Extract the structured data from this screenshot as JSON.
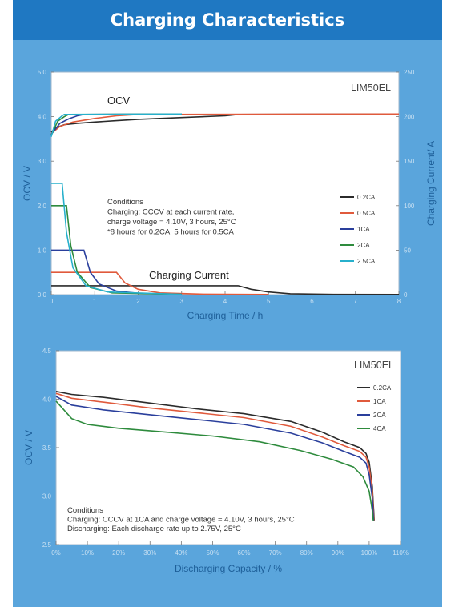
{
  "header": {
    "title": "Charging Characteristics"
  },
  "chart_data": [
    {
      "type": "line",
      "model": "LIM50EL",
      "xlabel": "Charging Time / h",
      "ylabel": "OCV / V",
      "y2label": "Charging Current/ A",
      "xlim": [
        0,
        8
      ],
      "ylim": [
        0.0,
        5.0
      ],
      "y2lim": [
        0,
        250
      ],
      "x_ticks": [
        "0",
        "1",
        "2",
        "3",
        "4",
        "5",
        "6",
        "7",
        "8"
      ],
      "y_ticks": [
        "0.0",
        "1.0",
        "2.0",
        "3.0",
        "4.0",
        "5.0"
      ],
      "y2_ticks": [
        "0",
        "50",
        "100",
        "150",
        "200",
        "250"
      ],
      "annotations": [
        "OCV",
        "Charging Current"
      ],
      "conditions": [
        "Conditions",
        "Charging: CCCV at each current rate,",
        "charge voltage = 4.10V, 3 hours, 25°C",
        "*8 hours for 0.2CA, 5 hours for 0.5CA"
      ],
      "legend_position": "right",
      "series": [
        {
          "name": "0.2CA",
          "color": "#2b2b2b",
          "ocv": [
            [
              0,
              3.65
            ],
            [
              0.1,
              3.75
            ],
            [
              0.3,
              3.82
            ],
            [
              0.6,
              3.85
            ],
            [
              1,
              3.88
            ],
            [
              1.5,
              3.91
            ],
            [
              2,
              3.94
            ],
            [
              3,
              3.98
            ],
            [
              4,
              4.02
            ],
            [
              4.3,
              4.05
            ],
            [
              8,
              4.06
            ]
          ],
          "current": [
            [
              0,
              10
            ],
            [
              4.3,
              10
            ],
            [
              4.6,
              6
            ],
            [
              5,
              3
            ],
            [
              5.5,
              1
            ],
            [
              6.5,
              0.3
            ],
            [
              8,
              0.2
            ]
          ]
        },
        {
          "name": "0.5CA",
          "color": "#e05a3c",
          "ocv": [
            [
              0,
              3.62
            ],
            [
              0.2,
              3.78
            ],
            [
              0.5,
              3.88
            ],
            [
              1,
              3.96
            ],
            [
              1.5,
              4.02
            ],
            [
              2,
              4.05
            ],
            [
              8,
              4.06
            ]
          ],
          "current": [
            [
              0,
              25
            ],
            [
              1.5,
              25
            ],
            [
              1.7,
              13
            ],
            [
              2,
              6
            ],
            [
              2.5,
              2
            ],
            [
              3.5,
              0.5
            ],
            [
              5,
              0.2
            ]
          ]
        },
        {
          "name": "1CA",
          "color": "#2a3f9c",
          "ocv": [
            [
              0,
              3.6
            ],
            [
              0.2,
              3.85
            ],
            [
              0.4,
              3.95
            ],
            [
              0.6,
              4.02
            ],
            [
              0.75,
              4.05
            ],
            [
              3,
              4.06
            ]
          ],
          "current": [
            [
              0,
              50
            ],
            [
              0.75,
              50
            ],
            [
              0.9,
              25
            ],
            [
              1.1,
              12
            ],
            [
              1.5,
              4
            ],
            [
              2,
              1.5
            ],
            [
              3,
              0.3
            ]
          ]
        },
        {
          "name": "2CA",
          "color": "#2e8b3d",
          "ocv": [
            [
              0,
              3.58
            ],
            [
              0.15,
              3.9
            ],
            [
              0.3,
              4.0
            ],
            [
              0.4,
              4.05
            ],
            [
              3,
              4.06
            ]
          ],
          "current": [
            [
              0,
              100
            ],
            [
              0.35,
              100
            ],
            [
              0.45,
              55
            ],
            [
              0.6,
              25
            ],
            [
              0.9,
              8
            ],
            [
              1.4,
              2
            ],
            [
              3,
              0.3
            ]
          ]
        },
        {
          "name": "2.5CA",
          "color": "#27b0cc",
          "ocv": [
            [
              0,
              3.55
            ],
            [
              0.1,
              3.9
            ],
            [
              0.25,
              4.02
            ],
            [
              0.3,
              4.05
            ],
            [
              3,
              4.06
            ]
          ],
          "current": [
            [
              0,
              125
            ],
            [
              0.25,
              125
            ],
            [
              0.35,
              70
            ],
            [
              0.5,
              30
            ],
            [
              0.8,
              10
            ],
            [
              1.3,
              3
            ],
            [
              3,
              0.3
            ]
          ]
        }
      ]
    },
    {
      "type": "line",
      "model": "LIM50EL",
      "xlabel": "Discharging Capacity / %",
      "ylabel": "OCV / V",
      "xlim": [
        0,
        110
      ],
      "ylim": [
        2.5,
        4.5
      ],
      "x_ticks": [
        "0%",
        "10%",
        "20%",
        "30%",
        "40%",
        "50%",
        "60%",
        "70%",
        "80%",
        "90%",
        "100%",
        "110%"
      ],
      "y_ticks": [
        "2.5",
        "3.0",
        "3.5",
        "4.0",
        "4.5"
      ],
      "conditions": [
        "Conditions",
        "Charging: CCCV at 1CA and charge voltage = 4.10V, 3 hours, 25°C",
        "Discharging: Each discharge rate up to 2.75V, 25°C"
      ],
      "legend_position": "top-right",
      "series": [
        {
          "name": "0.2CA",
          "color": "#2b2b2b",
          "points": [
            [
              0,
              4.08
            ],
            [
              5,
              4.05
            ],
            [
              15,
              4.02
            ],
            [
              30,
              3.96
            ],
            [
              45,
              3.9
            ],
            [
              60,
              3.85
            ],
            [
              75,
              3.77
            ],
            [
              85,
              3.66
            ],
            [
              92,
              3.56
            ],
            [
              97,
              3.5
            ],
            [
              99,
              3.44
            ],
            [
              100,
              3.35
            ],
            [
              101,
              3.1
            ],
            [
              101.6,
              2.75
            ]
          ]
        },
        {
          "name": "1CA",
          "color": "#e05a3c",
          "points": [
            [
              0,
              4.06
            ],
            [
              5,
              4.01
            ],
            [
              15,
              3.97
            ],
            [
              30,
              3.91
            ],
            [
              45,
              3.86
            ],
            [
              60,
              3.81
            ],
            [
              75,
              3.72
            ],
            [
              85,
              3.61
            ],
            [
              92,
              3.52
            ],
            [
              97,
              3.46
            ],
            [
              99,
              3.4
            ],
            [
              100,
              3.3
            ],
            [
              101,
              3.05
            ],
            [
              101.5,
              2.75
            ]
          ]
        },
        {
          "name": "2CA",
          "color": "#2a3f9c",
          "points": [
            [
              0,
              4.03
            ],
            [
              5,
              3.94
            ],
            [
              15,
              3.89
            ],
            [
              30,
              3.84
            ],
            [
              45,
              3.79
            ],
            [
              60,
              3.74
            ],
            [
              75,
              3.65
            ],
            [
              85,
              3.55
            ],
            [
              92,
              3.46
            ],
            [
              97,
              3.4
            ],
            [
              99,
              3.34
            ],
            [
              100,
              3.22
            ],
            [
              101,
              2.98
            ],
            [
              101.4,
              2.75
            ]
          ]
        },
        {
          "name": "4CA",
          "color": "#2e8b3d",
          "points": [
            [
              0,
              3.98
            ],
            [
              5,
              3.8
            ],
            [
              10,
              3.74
            ],
            [
              20,
              3.7
            ],
            [
              35,
              3.66
            ],
            [
              50,
              3.62
            ],
            [
              65,
              3.56
            ],
            [
              78,
              3.47
            ],
            [
              88,
              3.38
            ],
            [
              95,
              3.3
            ],
            [
              98,
              3.2
            ],
            [
              100,
              3.05
            ],
            [
              101,
              2.85
            ],
            [
              101.3,
              2.75
            ]
          ]
        }
      ]
    }
  ]
}
